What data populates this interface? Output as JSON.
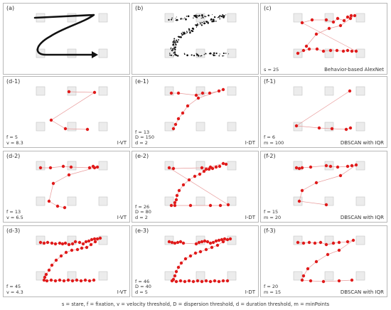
{
  "figure": {
    "legend": "s = stare, f = fixation, v = velocity threshold, D = dispersion threshold, d = duration threshold, m = minPoints",
    "colors": {
      "point": "#e01b1b",
      "line": "#e89a9a",
      "box_fill": "#ececec",
      "box_stroke": "#c4c4c4",
      "path": "#111111",
      "raw": "#111111"
    },
    "panels": [
      {
        "id": "a",
        "label": "(a)",
        "method": "",
        "params": [],
        "kind": "path"
      },
      {
        "id": "b",
        "label": "(b)",
        "method": "",
        "params": [],
        "kind": "raw"
      },
      {
        "id": "c",
        "label": "(c)",
        "method": "Behavior-based AlexNet",
        "params": [
          "s = 25"
        ],
        "kind": "fix",
        "count": 25
      },
      {
        "id": "d1",
        "label": "(d-1)",
        "method": "I-VT",
        "params": [
          "f = 5",
          "v = 8.3"
        ],
        "kind": "fix",
        "count": 5
      },
      {
        "id": "e1",
        "label": "(e-1)",
        "method": "I-DT",
        "params": [
          "f = 13",
          "D = 150",
          "d = 2"
        ],
        "kind": "fix",
        "count": 13
      },
      {
        "id": "f1",
        "label": "(f-1)",
        "method": "DBSCAN with IQR",
        "params": [
          "f = 6",
          "m = 100"
        ],
        "kind": "fix",
        "count": 6
      },
      {
        "id": "d2",
        "label": "(d-2)",
        "method": "I-VT",
        "params": [
          "f = 13",
          "v = 6.5"
        ],
        "kind": "fix",
        "count": 13
      },
      {
        "id": "e2",
        "label": "(e-2)",
        "method": "I-DT",
        "params": [
          "f = 26",
          "D = 80",
          "d = 2"
        ],
        "kind": "fix",
        "count": 26
      },
      {
        "id": "f2",
        "label": "(f-2)",
        "method": "DBSCAN with IQR",
        "params": [
          "f = 15",
          "m = 20"
        ],
        "kind": "fix",
        "count": 15
      },
      {
        "id": "d3",
        "label": "(d-3)",
        "method": "I-VT",
        "params": [
          "f = 45",
          "v = 4.3"
        ],
        "kind": "fix",
        "count": 45
      },
      {
        "id": "e3",
        "label": "(e-3)",
        "method": "I-DT",
        "params": [
          "f = 46",
          "D = 40",
          "d = 5"
        ],
        "kind": "fix",
        "count": 46
      },
      {
        "id": "f3",
        "label": "(f-3)",
        "method": "DBSCAN with IQR",
        "params": [
          "f = 20",
          "m = 15"
        ],
        "kind": "fix",
        "count": 20
      }
    ]
  }
}
